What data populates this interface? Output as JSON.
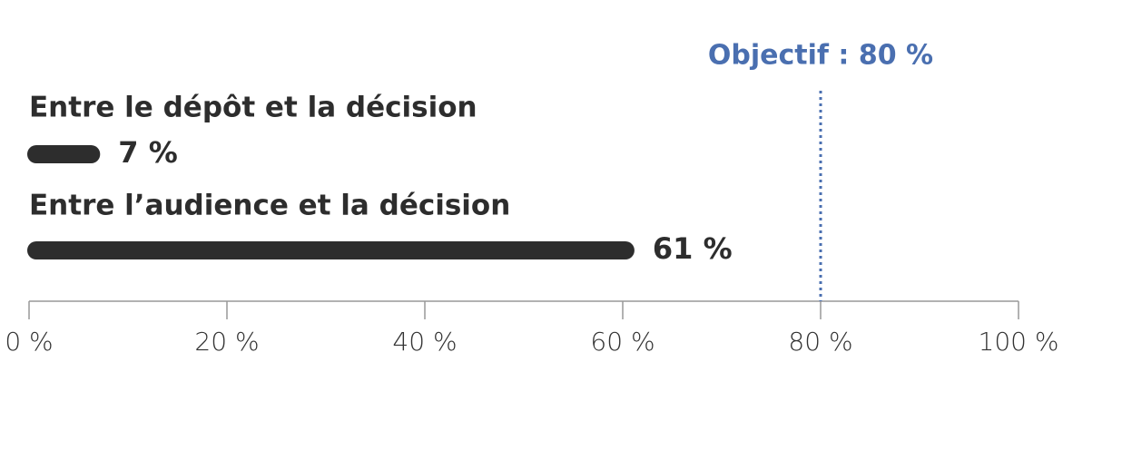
{
  "chart_data": {
    "type": "bar",
    "orientation": "horizontal",
    "categories": [
      "Entre le dépôt et la décision",
      "Entre l’audience et la décision"
    ],
    "values": [
      7,
      61
    ],
    "value_labels": [
      "7 %",
      "61 %"
    ],
    "color": "#2d2d2d",
    "xlim": [
      0,
      100
    ],
    "xticks": [
      {
        "value": 0,
        "label": "0 %"
      },
      {
        "value": 20,
        "label": "20 %"
      },
      {
        "value": 40,
        "label": "40 %"
      },
      {
        "value": 60,
        "label": "60 %"
      },
      {
        "value": 80,
        "label": "80 %"
      },
      {
        "value": 100,
        "label": "100 %"
      }
    ],
    "target": {
      "value": 80,
      "label": "Objectif : 80 %",
      "color": "#4a6fb0"
    }
  }
}
